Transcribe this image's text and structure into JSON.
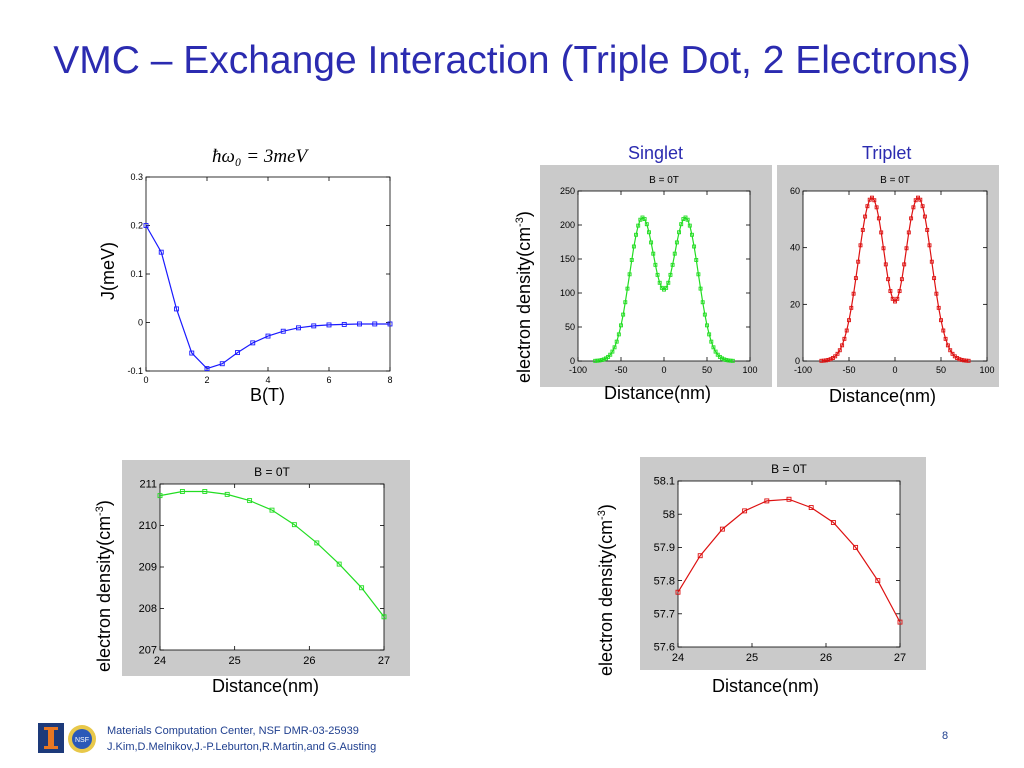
{
  "title": "VMC – Exchange Interaction (Triple Dot, 2 Electrons)",
  "formula": "ħω₀ = 3meV",
  "labels": {
    "singlet": "Singlet",
    "triplet": "Triplet",
    "j_ylabel": "J(meV)",
    "j_xlabel": "B(T)",
    "dist_xlabel": "Distance(nm)",
    "density_ylabel": "electron density(cm",
    "density_sup": "-3",
    "density_close": ")"
  },
  "footer": {
    "line1": "Materials Computation Center, NSF DMR-03-25939",
    "line2": "J.Kim,D.Melnikov,J.-P.Leburton,R.Martin,and G.Austing",
    "page": "8"
  },
  "colors": {
    "title": "#2b2bb0",
    "blue": "#1a1aff",
    "green": "#22dd22",
    "red": "#dd1111",
    "frame": "#cacaca"
  },
  "chart_data": [
    {
      "id": "exchange",
      "type": "line",
      "title": "",
      "xlabel": "B(T)",
      "ylabel": "J(meV)",
      "xlim": [
        0,
        8
      ],
      "ylim": [
        -0.1,
        0.3
      ],
      "xticks": [
        0,
        2,
        4,
        6,
        8
      ],
      "yticks": [
        -0.1,
        0,
        0.1,
        0.2,
        0.3
      ],
      "color": "#1a1aff",
      "series": [
        {
          "x": [
            0,
            0.5,
            1,
            1.5,
            2,
            2.5,
            3,
            3.5,
            4,
            4.5,
            5,
            5.5,
            6,
            6.5,
            7,
            7.5,
            8
          ],
          "y": [
            0.2,
            0.145,
            0.028,
            -0.063,
            -0.095,
            -0.085,
            -0.062,
            -0.042,
            -0.028,
            -0.018,
            -0.011,
            -0.007,
            -0.005,
            -0.004,
            -0.003,
            -0.003,
            -0.003
          ]
        }
      ]
    },
    {
      "id": "singlet",
      "type": "line",
      "title": "B = 0T",
      "xlim": [
        -100,
        100
      ],
      "ylim": [
        0,
        250
      ],
      "xticks": [
        -100,
        -50,
        0,
        50,
        100
      ],
      "yticks": [
        0,
        50,
        100,
        150,
        200,
        250
      ],
      "color": "#22dd22",
      "profile": {
        "peak": 211,
        "center_value": 105,
        "peak_x": 25,
        "width": 15,
        "x_min": -80,
        "x_max": 80,
        "step": 2.5
      }
    },
    {
      "id": "triplet",
      "type": "line",
      "title": "B = 0T",
      "xlim": [
        -100,
        100
      ],
      "ylim": [
        0,
        60
      ],
      "xticks": [
        -100,
        -50,
        0,
        50,
        100
      ],
      "yticks": [
        0,
        20,
        40,
        60
      ],
      "color": "#dd1111",
      "profile": {
        "peak": 58,
        "center_value": 21,
        "peak_x": 25,
        "width": 15,
        "x_min": -80,
        "x_max": 80,
        "step": 2.5
      }
    },
    {
      "id": "singlet-zoom",
      "type": "line",
      "title": "B = 0T",
      "xlim": [
        24,
        27
      ],
      "ylim": [
        207,
        211
      ],
      "xticks": [
        24,
        25,
        26,
        27
      ],
      "yticks": [
        207,
        208,
        209,
        210,
        211
      ],
      "color": "#22dd22",
      "series": [
        {
          "x": [
            24,
            24.3,
            24.6,
            24.9,
            25.2,
            25.5,
            25.8,
            26.1,
            26.4,
            26.7,
            27
          ],
          "y": [
            210.72,
            210.82,
            210.82,
            210.75,
            210.6,
            210.37,
            210.02,
            209.58,
            209.07,
            208.5,
            207.8
          ]
        }
      ]
    },
    {
      "id": "triplet-zoom",
      "type": "line",
      "title": "B = 0T",
      "xlim": [
        24,
        27
      ],
      "ylim": [
        57.6,
        58.1
      ],
      "xticks": [
        24,
        25,
        26,
        27
      ],
      "yticks": [
        57.6,
        57.7,
        57.8,
        57.9,
        58,
        58.1
      ],
      "color": "#dd1111",
      "series": [
        {
          "x": [
            24,
            24.3,
            24.6,
            24.9,
            25.2,
            25.5,
            25.8,
            26.1,
            26.4,
            26.7,
            27
          ],
          "y": [
            57.765,
            57.875,
            57.955,
            58.01,
            58.04,
            58.045,
            58.02,
            57.975,
            57.9,
            57.8,
            57.675
          ]
        }
      ]
    }
  ]
}
